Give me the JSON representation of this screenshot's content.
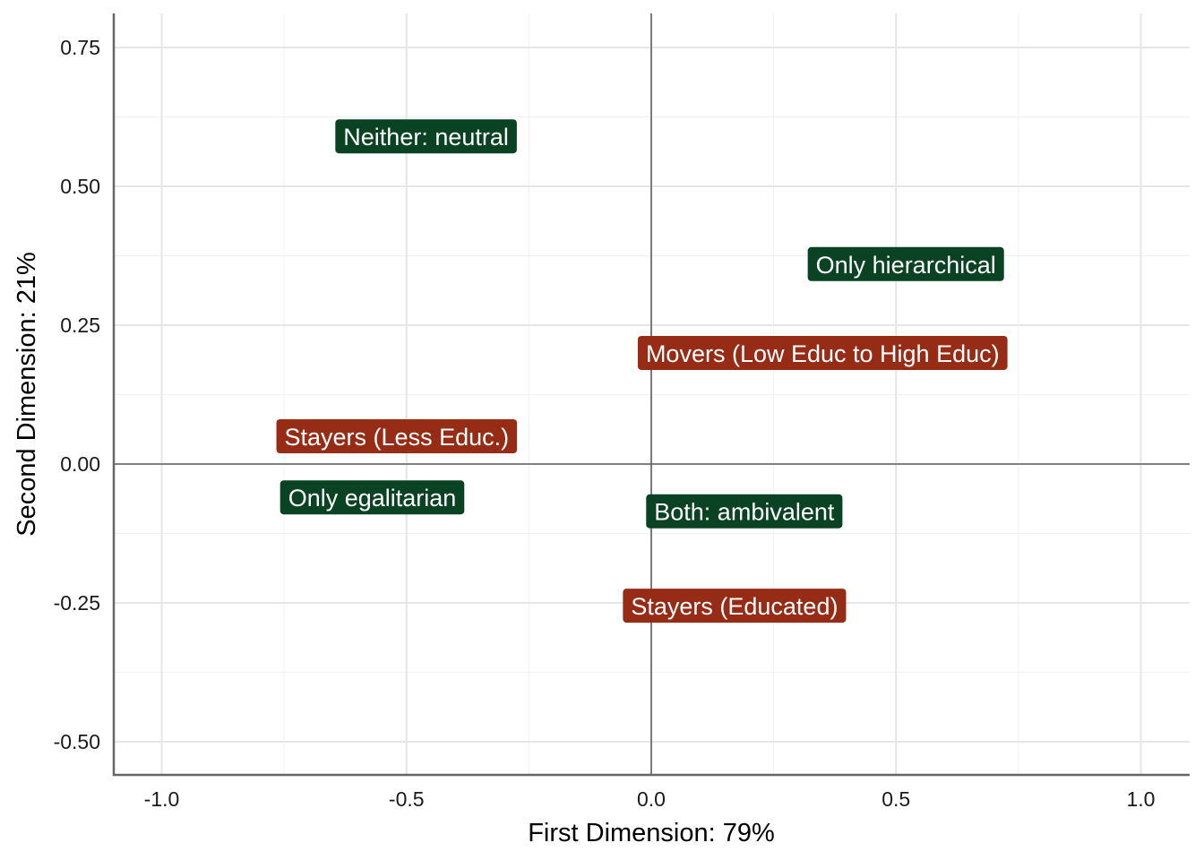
{
  "chart_data": {
    "type": "scatter",
    "xlabel": "First Dimension: 79%",
    "ylabel": "Second Dimension: 21%",
    "xlim": [
      -1.1,
      1.1
    ],
    "ylim": [
      -0.56,
      0.81
    ],
    "x_ticks": [
      -1.0,
      -0.5,
      0.0,
      0.5,
      1.0
    ],
    "x_tick_labels": [
      "-1.0",
      "-0.5",
      "0.0",
      "0.5",
      "1.0"
    ],
    "y_ticks": [
      -0.5,
      -0.25,
      0.0,
      0.25,
      0.5,
      0.75
    ],
    "y_tick_labels": [
      "-0.50",
      "-0.25",
      "0.00",
      "0.25",
      "0.50",
      "0.75"
    ],
    "grid": true,
    "reference_lines": {
      "x": 0,
      "y": 0
    },
    "colors": {
      "group_a": "#0a4323",
      "group_b": "#962c16"
    },
    "points": [
      {
        "label": "Neither: neutral",
        "x": -0.46,
        "y": 0.59,
        "group": "group_a"
      },
      {
        "label": "Only hierarchical",
        "x": 0.52,
        "y": 0.36,
        "group": "group_a"
      },
      {
        "label": "Movers (Low Educ to High Educ)",
        "x": 0.35,
        "y": 0.2,
        "group": "group_b"
      },
      {
        "label": "Stayers (Less Educ.)",
        "x": -0.52,
        "y": 0.05,
        "group": "group_b"
      },
      {
        "label": "Only egalitarian",
        "x": -0.57,
        "y": -0.06,
        "group": "group_a"
      },
      {
        "label": "Both: ambivalent",
        "x": 0.19,
        "y": -0.085,
        "group": "group_a"
      },
      {
        "label": "Stayers (Educated)",
        "x": 0.17,
        "y": -0.255,
        "group": "group_b"
      }
    ]
  }
}
